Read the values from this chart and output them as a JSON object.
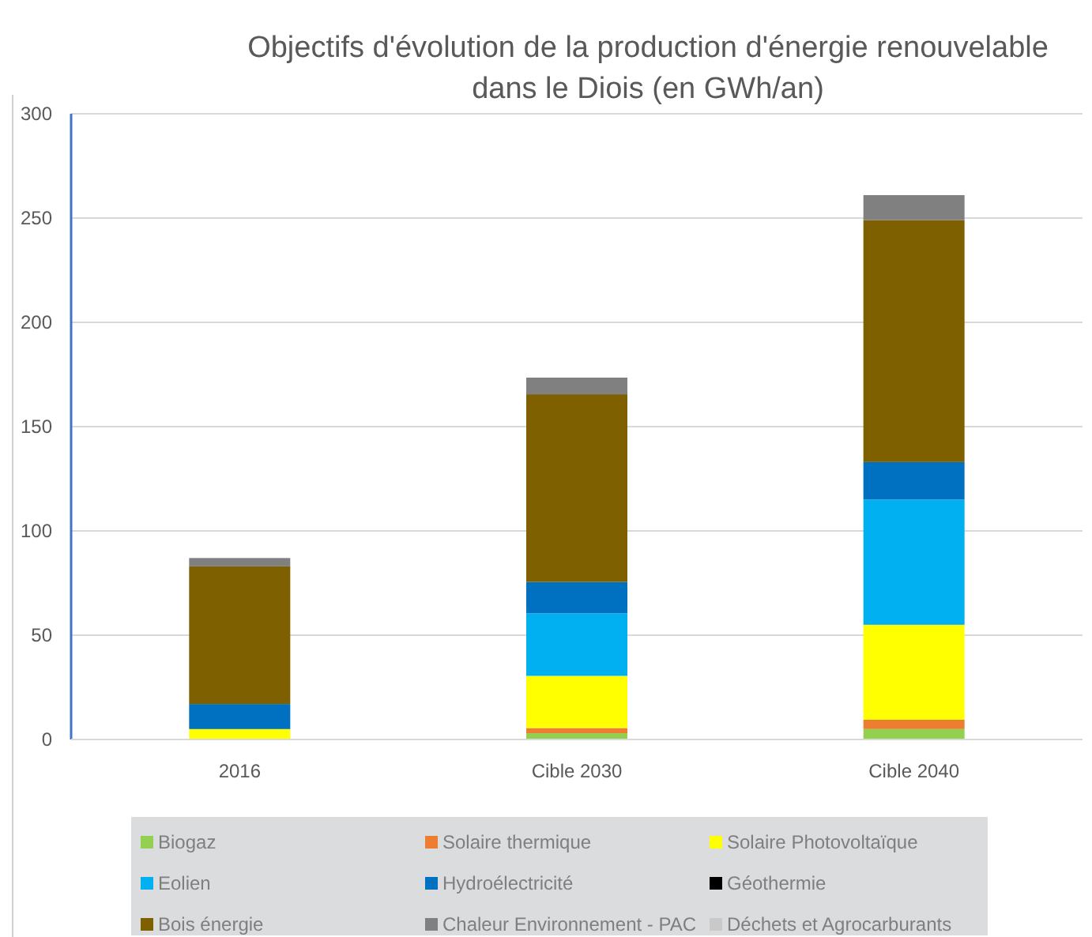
{
  "chart_data": {
    "type": "bar",
    "stacked": true,
    "title": "Objectifs d'évolution de la production d'énergie renouvelable dans le Diois (en GWh/an)",
    "categories": [
      "2016",
      "Cible 2030",
      "Cible 2040"
    ],
    "series": [
      {
        "name": "Biogaz",
        "color": "#92d050",
        "values": [
          0,
          3,
          5
        ]
      },
      {
        "name": "Solaire thermique",
        "color": "#ed7d31",
        "values": [
          0,
          2.5,
          4.5
        ]
      },
      {
        "name": "Solaire Photovoltaïque",
        "color": "#ffff00",
        "values": [
          5,
          25,
          45.5
        ]
      },
      {
        "name": "Eolien",
        "color": "#00b0f0",
        "values": [
          0,
          30,
          60
        ]
      },
      {
        "name": "Hydroélectricité",
        "color": "#0070c0",
        "values": [
          12,
          15,
          18
        ]
      },
      {
        "name": "Géothermie",
        "color": "#000000",
        "values": [
          0,
          0,
          0
        ]
      },
      {
        "name": "Bois énergie",
        "color": "#7f6000",
        "values": [
          66,
          90,
          116
        ]
      },
      {
        "name": "Chaleur Environnement - PAC",
        "color": "#808080",
        "values": [
          4,
          8,
          12
        ]
      },
      {
        "name": "Déchets et Agrocarburants",
        "color": "#c9c9c9",
        "values": [
          0,
          0,
          0
        ]
      }
    ],
    "ylim": [
      0,
      300
    ],
    "yticks": [
      0,
      50,
      100,
      150,
      200,
      250,
      300
    ],
    "grid": "y",
    "legend": "bottom"
  }
}
